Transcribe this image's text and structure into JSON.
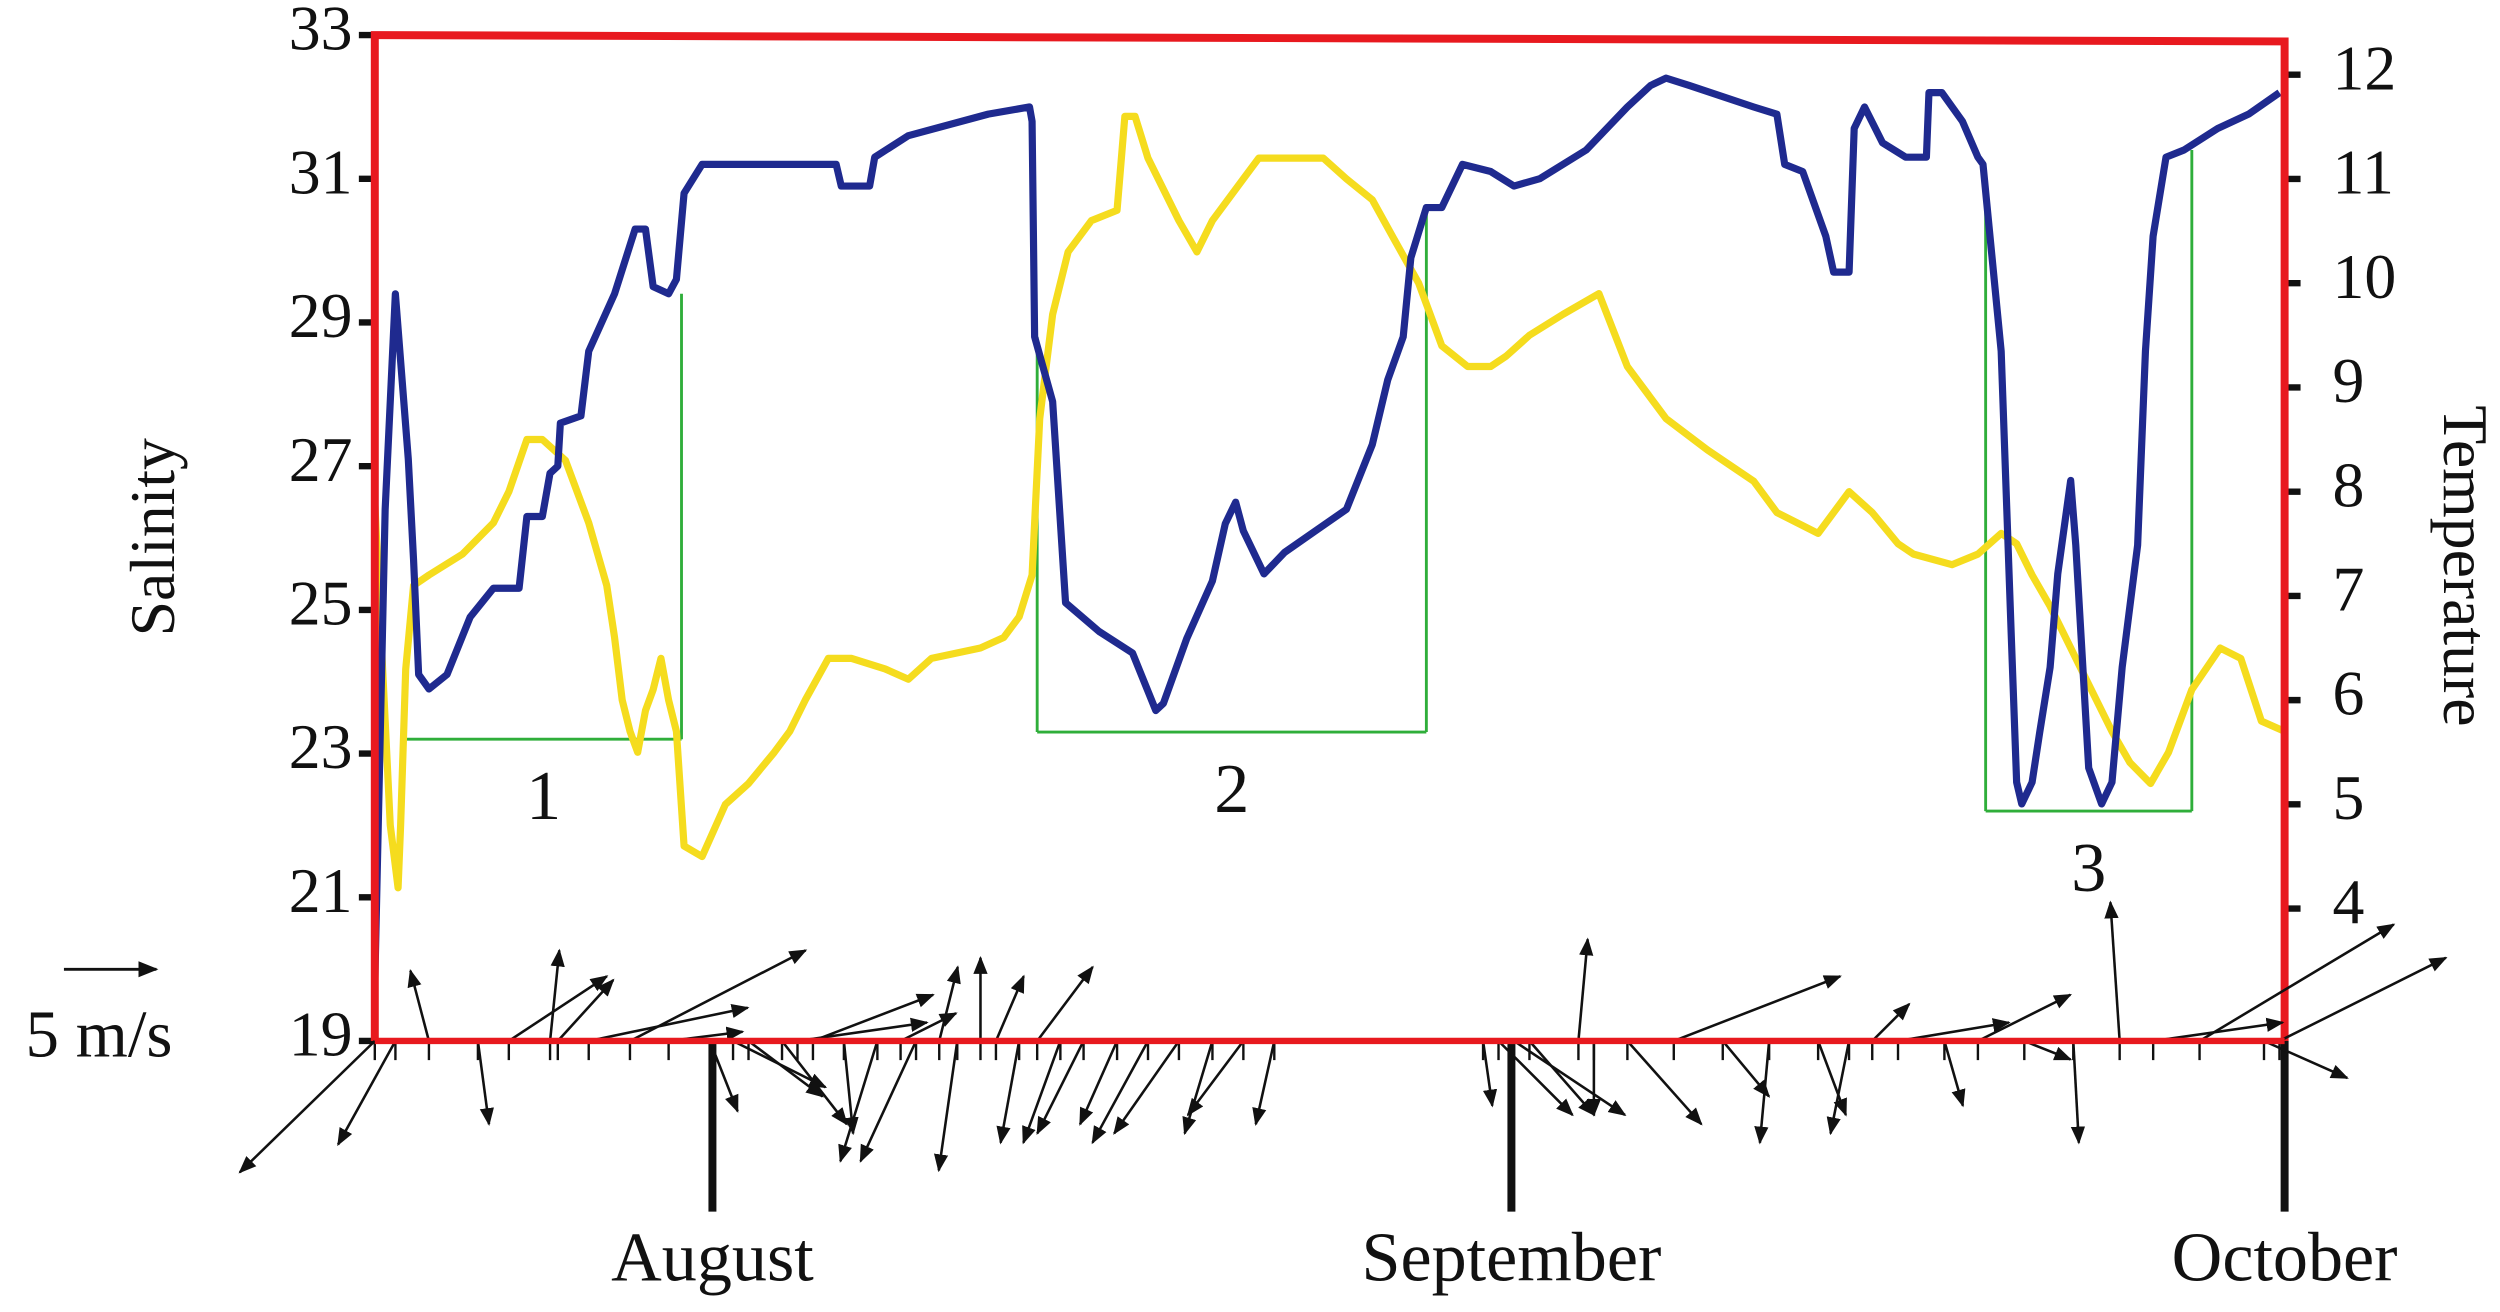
{
  "chart_data": {
    "type": "line",
    "ylabel": "Salinity",
    "y2label": "Temperature",
    "xlim": [
      -13.1,
      61
    ],
    "xticks": [
      {
        "value": 0,
        "label": "August"
      },
      {
        "value": 31,
        "label": "September"
      },
      {
        "value": 61,
        "label": "October"
      }
    ],
    "ylim": [
      19,
      33
    ],
    "yticks": [
      19,
      21,
      23,
      25,
      27,
      29,
      31,
      33
    ],
    "y2lim": [
      2.73,
      12.38
    ],
    "y2ticks": [
      4,
      5,
      6,
      7,
      8,
      9,
      10,
      11,
      12
    ],
    "frame_color": "#e8191f",
    "series": [
      {
        "color": "#1f2a8f",
        "x": [
          -13.1,
          -12.7,
          -12.3,
          -11.8,
          -11.6,
          -11.4,
          -11.0,
          -10.3,
          -9.4,
          -8.5,
          -7.5,
          -7.2,
          -6.6,
          -6.3,
          -6.0,
          -5.9,
          -5.1,
          -4.8,
          -3.8,
          -3.0,
          -2.6,
          -2.3,
          -1.7,
          -1.4,
          -1.1,
          -0.4,
          4.8,
          5.0,
          6.1,
          6.3,
          7.6,
          10.7,
          12.3,
          12.4,
          12.5,
          13.2,
          13.7,
          15.0,
          16.3,
          17.2,
          17.5,
          18.4,
          19.4,
          19.9,
          20.3,
          20.6,
          21.4,
          22.2,
          23.4,
          24.6,
          25.6,
          26.2,
          26.8,
          27.1,
          27.7,
          28.3,
          29.1,
          30.2,
          31.1,
          32.1,
          33.9,
          35.5,
          36.4,
          37.0,
          37.9,
          40.4,
          41.3,
          41.6,
          42.3,
          43.2,
          43.5,
          44.1,
          44.3,
          44.7,
          45.4,
          46.3,
          47.1,
          47.2,
          47.7,
          48.5,
          49.1,
          49.3,
          50.0,
          50.4,
          50.6,
          50.8,
          51.2,
          51.5,
          51.9,
          52.2,
          52.7,
          52.9,
          53.4,
          53.9,
          54.3,
          54.7,
          55.3,
          55.6,
          55.9,
          56.4,
          57.1,
          58.4,
          59.6,
          60.8
        ],
        "values": [
          19.8,
          26.4,
          29.4,
          27.1,
          25.7,
          24.1,
          23.9,
          24.1,
          24.9,
          25.3,
          25.3,
          26.3,
          26.3,
          26.9,
          27.0,
          27.6,
          27.7,
          28.6,
          29.4,
          30.3,
          30.3,
          29.5,
          29.4,
          29.6,
          30.8,
          31.2,
          31.2,
          30.9,
          30.9,
          31.3,
          31.6,
          31.9,
          32.0,
          31.8,
          28.8,
          27.9,
          25.1,
          24.7,
          24.4,
          23.6,
          23.7,
          24.6,
          25.4,
          26.2,
          26.5,
          26.1,
          25.5,
          25.8,
          26.1,
          26.4,
          27.3,
          28.2,
          28.8,
          29.9,
          30.6,
          30.6,
          31.2,
          31.1,
          30.9,
          31.0,
          31.4,
          32.0,
          32.3,
          32.4,
          32.3,
          32.0,
          31.9,
          31.2,
          31.1,
          30.2,
          29.7,
          29.7,
          31.7,
          32.0,
          31.5,
          31.3,
          31.3,
          32.2,
          32.2,
          31.8,
          31.3,
          31.2,
          28.6,
          24.6,
          22.6,
          22.3,
          22.6,
          23.3,
          24.2,
          25.5,
          26.8,
          25.9,
          22.8,
          22.3,
          22.6,
          24.2,
          25.9,
          28.6,
          30.2,
          31.3,
          31.4,
          31.7,
          31.9,
          32.2
        ]
      },
      {
        "color": "#f5dc1e",
        "axis": "y2",
        "x": [
          -13.1,
          -12.8,
          -12.5,
          -12.2,
          -12.1,
          -11.9,
          -11.6,
          -11.0,
          -9.7,
          -8.5,
          -7.9,
          -7.2,
          -6.6,
          -5.7,
          -4.8,
          -4.1,
          -3.8,
          -3.5,
          -3.2,
          -2.9,
          -2.6,
          -2.3,
          -2.0,
          -1.7,
          -1.4,
          -1.1,
          -0.4,
          0.5,
          1.4,
          2.4,
          3.0,
          3.6,
          4.5,
          5.4,
          6.7,
          7.6,
          8.5,
          10.4,
          11.3,
          11.9,
          12.4,
          12.7,
          13.2,
          13.8,
          14.7,
          15.7,
          16.0,
          16.4,
          16.9,
          17.5,
          18.1,
          18.8,
          19.4,
          20.0,
          20.6,
          21.2,
          21.8,
          22.8,
          23.7,
          24.6,
          25.6,
          26.5,
          27.4,
          28.3,
          29.3,
          30.2,
          30.8,
          31.7,
          33.0,
          34.4,
          35.5,
          37.0,
          38.6,
          40.4,
          41.3,
          42.9,
          44.1,
          45.0,
          46.0,
          46.6,
          48.1,
          49.1,
          50.0,
          50.6,
          51.2,
          51.9,
          52.5,
          53.1,
          53.7,
          54.3,
          55.0,
          55.8,
          56.5,
          57.4,
          58.5,
          59.3,
          60.1,
          61.0
        ],
        "values": [
          7.9,
          6.3,
          4.8,
          4.2,
          4.8,
          6.3,
          7.1,
          7.2,
          7.4,
          7.7,
          8.0,
          8.5,
          8.5,
          8.3,
          7.7,
          7.1,
          6.6,
          6.0,
          5.7,
          5.5,
          5.9,
          6.1,
          6.4,
          6.0,
          5.7,
          4.6,
          4.5,
          5.0,
          5.2,
          5.5,
          5.7,
          6.0,
          6.4,
          6.4,
          6.3,
          6.2,
          6.4,
          6.5,
          6.6,
          6.8,
          7.2,
          8.7,
          9.7,
          10.3,
          10.6,
          10.7,
          11.6,
          11.6,
          11.2,
          10.9,
          10.6,
          10.3,
          10.6,
          10.8,
          11.0,
          11.2,
          11.2,
          11.2,
          11.2,
          11.0,
          10.8,
          10.4,
          10.0,
          9.4,
          9.2,
          9.2,
          9.3,
          9.5,
          9.7,
          9.9,
          9.2,
          8.7,
          8.4,
          8.1,
          7.8,
          7.6,
          8.0,
          7.8,
          7.5,
          7.4,
          7.3,
          7.4,
          7.6,
          7.5,
          7.2,
          6.9,
          6.6,
          6.3,
          6.0,
          5.7,
          5.4,
          5.2,
          5.5,
          6.1,
          6.5,
          6.4,
          5.8,
          5.7
        ]
      }
    ],
    "events": [
      {
        "label": "1",
        "x": [
          -11.9,
          -1.2
        ],
        "bottom": 23.2,
        "left_top": null,
        "right_top": 29.4
      },
      {
        "label": "2",
        "x": [
          12.6,
          27.7
        ],
        "bottom": 23.3,
        "left_top": 28.8,
        "right_top": 30.5
      },
      {
        "label": "3",
        "x": [
          49.4,
          57.4
        ],
        "bottom": 22.2,
        "left_top": 31.0,
        "right_top": 31.4
      }
    ],
    "event_color": "#2fae3a",
    "wind": {
      "x": [
        -13.1,
        -12.3,
        -11.0,
        -9.1,
        -7.9,
        -6.3,
        -6.0,
        -4.8,
        -3.2,
        -1.7,
        -0.1,
        0.8,
        1.4,
        2.7,
        3.3,
        3.9,
        5.1,
        6.4,
        7.3,
        7.9,
        8.8,
        9.5,
        10.4,
        11.0,
        11.9,
        12.6,
        13.5,
        14.4,
        15.7,
        16.9,
        18.1,
        19.4,
        20.6,
        21.8,
        29.9,
        30.5,
        31.1,
        31.7,
        33.6,
        34.2,
        35.5,
        37.3,
        39.2,
        41.0,
        42.9,
        44.1,
        45.0,
        46.0,
        47.8,
        49.1,
        50.9,
        52.8,
        54.6,
        55.9,
        57.7,
        60.2,
        60.8
      ],
      "u": [
        -7.3,
        -3.1,
        -1.0,
        0.6,
        5.3,
        0.5,
        3.0,
        8.6,
        9.5,
        4.0,
        1.5,
        5.0,
        4.0,
        3.5,
        7.0,
        6.5,
        0.5,
        -2.0,
        3.0,
        -3.0,
        1.0,
        -1.0,
        0.0,
        1.5,
        -1.0,
        3.0,
        -2.0,
        -2.5,
        -2.0,
        -3.0,
        -3.5,
        -1.5,
        -3.0,
        -1.0,
        0.5,
        4.0,
        6.0,
        3.5,
        0.5,
        0.0,
        4.0,
        9.0,
        2.5,
        -0.5,
        1.5,
        -1.0,
        2.0,
        6.0,
        1.0,
        5.0,
        2.5,
        0.3,
        -0.5,
        7.0,
        10.5,
        4.5,
        9.0
      ],
      "v": [
        -7.1,
        -5.6,
        3.8,
        -4.5,
        3.5,
        4.9,
        3.3,
        1.8,
        4.9,
        0.5,
        -3.8,
        -2.5,
        -3.0,
        -4.5,
        1.0,
        2.5,
        -5.0,
        -6.5,
        1.5,
        -6.5,
        4.0,
        -7.0,
        4.5,
        3.5,
        -5.5,
        4.0,
        -5.5,
        -5.0,
        -4.5,
        -5.5,
        -5.0,
        -5.0,
        -4.0,
        -4.5,
        -3.5,
        -4.0,
        -4.0,
        -4.0,
        5.5,
        -4.0,
        -4.5,
        3.5,
        -3.0,
        -5.5,
        -4.0,
        -5.0,
        2.0,
        1.0,
        -3.5,
        2.5,
        -1.0,
        -5.5,
        7.5,
        1.0,
        6.3,
        -2.0,
        4.5
      ]
    },
    "wind_scale": {
      "value": 5,
      "label": "5 m/s"
    }
  }
}
